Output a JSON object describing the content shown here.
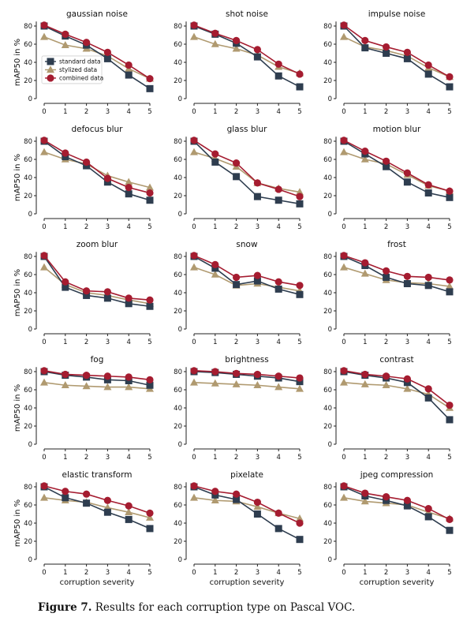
{
  "caption": {
    "label": "Figure 7.",
    "text": "Results for each corruption type on Pascal VOC."
  },
  "colors": {
    "standard": "#2e3d4f",
    "stylized": "#b09a70",
    "combined": "#a51c30"
  },
  "chart_data": [
    {
      "type": "line",
      "title": "gaussian noise",
      "ylabel": "mAP50 in %",
      "xlabel": "",
      "x": [
        0,
        1,
        2,
        3,
        4,
        5
      ],
      "ylim": [
        0,
        85
      ],
      "yticks": [
        0,
        20,
        40,
        60,
        80
      ],
      "legend": "center-left",
      "series": [
        {
          "name": "standard data",
          "values": [
            80,
            69,
            59,
            44,
            26,
            11
          ]
        },
        {
          "name": "stylized data",
          "values": [
            68,
            59,
            55,
            47,
            33,
            22
          ]
        },
        {
          "name": "combined data",
          "values": [
            81,
            71,
            62,
            51,
            37,
            22
          ]
        }
      ]
    },
    {
      "type": "line",
      "title": "shot noise",
      "ylabel": "",
      "xlabel": "",
      "x": [
        0,
        1,
        2,
        3,
        4,
        5
      ],
      "ylim": [
        0,
        85
      ],
      "yticks": [
        0,
        20,
        40,
        60,
        80
      ],
      "series": [
        {
          "name": "standard data",
          "values": [
            80,
            71,
            61,
            46,
            25,
            13
          ]
        },
        {
          "name": "stylized data",
          "values": [
            68,
            60,
            55,
            48,
            35,
            28
          ]
        },
        {
          "name": "combined data",
          "values": [
            81,
            72,
            64,
            54,
            38,
            27
          ]
        }
      ]
    },
    {
      "type": "line",
      "title": "impulse noise",
      "ylabel": "",
      "xlabel": "",
      "x": [
        0,
        1,
        2,
        3,
        4,
        5
      ],
      "ylim": [
        0,
        85
      ],
      "yticks": [
        0,
        20,
        40,
        60,
        80
      ],
      "series": [
        {
          "name": "standard data",
          "values": [
            80,
            56,
            50,
            44,
            27,
            13
          ]
        },
        {
          "name": "stylized data",
          "values": [
            68,
            57,
            53,
            47,
            34,
            24
          ]
        },
        {
          "name": "combined data",
          "values": [
            81,
            64,
            57,
            51,
            37,
            24
          ]
        }
      ]
    },
    {
      "type": "line",
      "title": "defocus blur",
      "ylabel": "mAP50 in %",
      "xlabel": "",
      "x": [
        0,
        1,
        2,
        3,
        4,
        5
      ],
      "ylim": [
        0,
        85
      ],
      "yticks": [
        0,
        20,
        40,
        60,
        80
      ],
      "series": [
        {
          "name": "standard data",
          "values": [
            80,
            63,
            53,
            35,
            22,
            15
          ]
        },
        {
          "name": "stylized data",
          "values": [
            68,
            60,
            55,
            42,
            35,
            29
          ]
        },
        {
          "name": "combined data",
          "values": [
            81,
            67,
            57,
            39,
            29,
            23
          ]
        }
      ]
    },
    {
      "type": "line",
      "title": "glass blur",
      "ylabel": "",
      "xlabel": "",
      "x": [
        0,
        1,
        2,
        3,
        4,
        5
      ],
      "ylim": [
        0,
        85
      ],
      "yticks": [
        0,
        20,
        40,
        60,
        80
      ],
      "series": [
        {
          "name": "standard data",
          "values": [
            80,
            57,
            41,
            19,
            15,
            11
          ]
        },
        {
          "name": "stylized data",
          "values": [
            68,
            61,
            52,
            34,
            28,
            24
          ]
        },
        {
          "name": "combined data",
          "values": [
            81,
            66,
            56,
            34,
            27,
            19
          ]
        }
      ]
    },
    {
      "type": "line",
      "title": "motion blur",
      "ylabel": "",
      "xlabel": "",
      "x": [
        0,
        1,
        2,
        3,
        4,
        5
      ],
      "ylim": [
        0,
        85
      ],
      "yticks": [
        0,
        20,
        40,
        60,
        80
      ],
      "series": [
        {
          "name": "standard data",
          "values": [
            80,
            66,
            52,
            35,
            23,
            18
          ]
        },
        {
          "name": "stylized data",
          "values": [
            68,
            60,
            55,
            43,
            31,
            25
          ]
        },
        {
          "name": "combined data",
          "values": [
            81,
            69,
            58,
            45,
            32,
            25
          ]
        }
      ]
    },
    {
      "type": "line",
      "title": "zoom blur",
      "ylabel": "mAP50 in %",
      "xlabel": "",
      "x": [
        0,
        1,
        2,
        3,
        4,
        5
      ],
      "ylim": [
        0,
        85
      ],
      "yticks": [
        0,
        20,
        40,
        60,
        80
      ],
      "series": [
        {
          "name": "standard data",
          "values": [
            80,
            46,
            37,
            34,
            28,
            25
          ]
        },
        {
          "name": "stylized data",
          "values": [
            68,
            49,
            40,
            37,
            32,
            28
          ]
        },
        {
          "name": "combined data",
          "values": [
            81,
            52,
            42,
            41,
            34,
            32
          ]
        }
      ]
    },
    {
      "type": "line",
      "title": "snow",
      "ylabel": "",
      "xlabel": "",
      "x": [
        0,
        1,
        2,
        3,
        4,
        5
      ],
      "ylim": [
        0,
        85
      ],
      "yticks": [
        0,
        20,
        40,
        60,
        80
      ],
      "series": [
        {
          "name": "standard data",
          "values": [
            80,
            67,
            49,
            53,
            44,
            38
          ]
        },
        {
          "name": "stylized data",
          "values": [
            68,
            60,
            48,
            50,
            46,
            42
          ]
        },
        {
          "name": "combined data",
          "values": [
            81,
            71,
            57,
            59,
            52,
            48
          ]
        }
      ]
    },
    {
      "type": "line",
      "title": "frost",
      "ylabel": "",
      "xlabel": "",
      "x": [
        0,
        1,
        2,
        3,
        4,
        5
      ],
      "ylim": [
        0,
        85
      ],
      "yticks": [
        0,
        20,
        40,
        60,
        80
      ],
      "series": [
        {
          "name": "standard data",
          "values": [
            80,
            70,
            57,
            50,
            48,
            41
          ]
        },
        {
          "name": "stylized data",
          "values": [
            68,
            61,
            54,
            51,
            50,
            47
          ]
        },
        {
          "name": "combined data",
          "values": [
            81,
            73,
            64,
            58,
            57,
            54
          ]
        }
      ]
    },
    {
      "type": "line",
      "title": "fog",
      "ylabel": "mAP50 in %",
      "xlabel": "",
      "x": [
        0,
        1,
        2,
        3,
        4,
        5
      ],
      "ylim": [
        0,
        85
      ],
      "yticks": [
        0,
        20,
        40,
        60,
        80
      ],
      "series": [
        {
          "name": "standard data",
          "values": [
            80,
            76,
            74,
            71,
            70,
            65
          ]
        },
        {
          "name": "stylized data",
          "values": [
            68,
            65,
            64,
            63,
            63,
            61
          ]
        },
        {
          "name": "combined data",
          "values": [
            81,
            77,
            76,
            75,
            74,
            71
          ]
        }
      ]
    },
    {
      "type": "line",
      "title": "brightness",
      "ylabel": "",
      "xlabel": "",
      "x": [
        0,
        1,
        2,
        3,
        4,
        5
      ],
      "ylim": [
        0,
        85
      ],
      "yticks": [
        0,
        20,
        40,
        60,
        80
      ],
      "series": [
        {
          "name": "standard data",
          "values": [
            80,
            79,
            77,
            75,
            73,
            69
          ]
        },
        {
          "name": "stylized data",
          "values": [
            68,
            67,
            66,
            65,
            63,
            61
          ]
        },
        {
          "name": "combined data",
          "values": [
            81,
            80,
            78,
            77,
            75,
            73
          ]
        }
      ]
    },
    {
      "type": "line",
      "title": "contrast",
      "ylabel": "",
      "xlabel": "",
      "x": [
        0,
        1,
        2,
        3,
        4,
        5
      ],
      "ylim": [
        0,
        85
      ],
      "yticks": [
        0,
        20,
        40,
        60,
        80
      ],
      "series": [
        {
          "name": "standard data",
          "values": [
            80,
            76,
            73,
            68,
            51,
            27
          ]
        },
        {
          "name": "stylized data",
          "values": [
            68,
            66,
            65,
            61,
            55,
            40
          ]
        },
        {
          "name": "combined data",
          "values": [
            81,
            77,
            75,
            72,
            61,
            43
          ]
        }
      ]
    },
    {
      "type": "line",
      "title": "elastic transform",
      "ylabel": "mAP50 in %",
      "xlabel": "corruption severity",
      "x": [
        0,
        1,
        2,
        3,
        4,
        5
      ],
      "ylim": [
        0,
        85
      ],
      "yticks": [
        0,
        20,
        40,
        60,
        80
      ],
      "series": [
        {
          "name": "standard data",
          "values": [
            80,
            68,
            62,
            52,
            44,
            34
          ]
        },
        {
          "name": "stylized data",
          "values": [
            68,
            65,
            63,
            57,
            52,
            46
          ]
        },
        {
          "name": "combined data",
          "values": [
            81,
            75,
            72,
            65,
            59,
            51
          ]
        }
      ]
    },
    {
      "type": "line",
      "title": "pixelate",
      "ylabel": "",
      "xlabel": "corruption severity",
      "x": [
        0,
        1,
        2,
        3,
        4,
        5
      ],
      "ylim": [
        0,
        85
      ],
      "yticks": [
        0,
        20,
        40,
        60,
        80
      ],
      "series": [
        {
          "name": "standard data",
          "values": [
            80,
            71,
            66,
            50,
            34,
            22
          ]
        },
        {
          "name": "stylized data",
          "values": [
            68,
            65,
            64,
            58,
            51,
            45
          ]
        },
        {
          "name": "combined data",
          "values": [
            81,
            75,
            72,
            63,
            51,
            40
          ]
        }
      ]
    },
    {
      "type": "line",
      "title": "jpeg compression",
      "ylabel": "",
      "xlabel": "corruption severity",
      "x": [
        0,
        1,
        2,
        3,
        4,
        5
      ],
      "ylim": [
        0,
        85
      ],
      "yticks": [
        0,
        20,
        40,
        60,
        80
      ],
      "series": [
        {
          "name": "standard data",
          "values": [
            80,
            70,
            65,
            59,
            47,
            32
          ]
        },
        {
          "name": "stylized data",
          "values": [
            68,
            64,
            62,
            60,
            52,
            45
          ]
        },
        {
          "name": "combined data",
          "values": [
            81,
            73,
            69,
            65,
            56,
            44
          ]
        }
      ]
    }
  ]
}
